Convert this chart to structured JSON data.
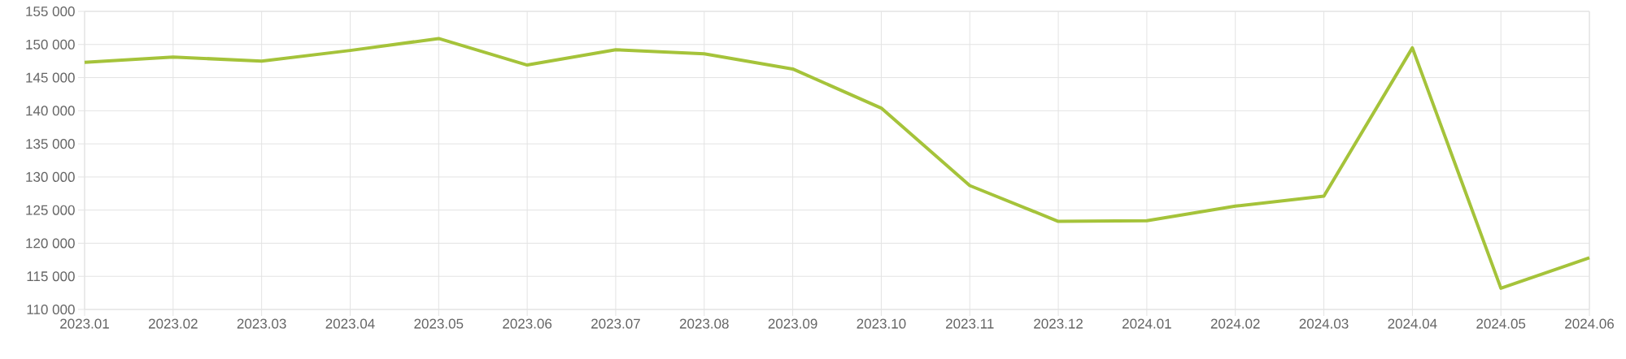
{
  "chart_data": {
    "type": "line",
    "categories": [
      "2023.01",
      "2023.02",
      "2023.03",
      "2023.04",
      "2023.05",
      "2023.06",
      "2023.07",
      "2023.08",
      "2023.09",
      "2023.10",
      "2023.11",
      "2023.12",
      "2024.01",
      "2024.02",
      "2024.03",
      "2024.04",
      "2024.05",
      "2024.06"
    ],
    "series": [
      {
        "color": "#a5c33a",
        "values": [
          147300,
          148100,
          147500,
          149100,
          150900,
          146900,
          149200,
          148600,
          146300,
          140400,
          128700,
          123300,
          123400,
          125600,
          127100,
          149500,
          113200,
          117800
        ]
      }
    ],
    "ylim": [
      110000,
      155000
    ],
    "yticks": [
      {
        "value": 110000,
        "label": "110 000"
      },
      {
        "value": 115000,
        "label": "115 000"
      },
      {
        "value": 120000,
        "label": "120 000"
      },
      {
        "value": 125000,
        "label": "125 000"
      },
      {
        "value": 130000,
        "label": "130 000"
      },
      {
        "value": 135000,
        "label": "135 000"
      },
      {
        "value": 140000,
        "label": "140 000"
      },
      {
        "value": 145000,
        "label": "145 000"
      },
      {
        "value": 150000,
        "label": "150 000"
      },
      {
        "value": 155000,
        "label": "155 000"
      }
    ],
    "grid": true,
    "marker": "none",
    "line_style": "solid"
  }
}
